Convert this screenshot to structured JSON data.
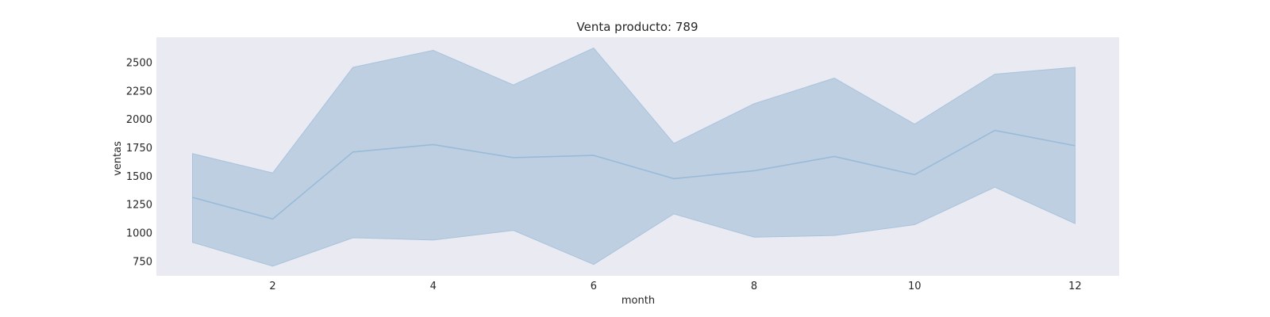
{
  "chart_data": {
    "type": "line",
    "title": "Venta producto: 789",
    "xlabel": "month",
    "ylabel": "ventas",
    "x": [
      1,
      2,
      3,
      4,
      5,
      6,
      7,
      8,
      9,
      10,
      11,
      12
    ],
    "series": [
      {
        "values": [
          1310,
          1120,
          1710,
          1775,
          1660,
          1680,
          1475,
          1545,
          1670,
          1510,
          1900,
          1765
        ],
        "band_lower": [
          915,
          705,
          955,
          935,
          1020,
          720,
          1165,
          960,
          975,
          1070,
          1400,
          1080
        ],
        "band_upper": [
          1695,
          1525,
          2455,
          2605,
          2300,
          2625,
          1785,
          2135,
          2360,
          1955,
          2395,
          2455
        ]
      }
    ],
    "xticks": [
      2,
      4,
      6,
      8,
      10,
      12
    ],
    "yticks": [
      750,
      1000,
      1250,
      1500,
      1750,
      2000,
      2250,
      2500
    ],
    "xlim": [
      0.55,
      12.55
    ],
    "ylim": [
      620,
      2720
    ],
    "grid": false,
    "colors": {
      "plot_background": "#eaeaf2",
      "line": "#99bbd8",
      "band_fill": "#a3bfd9",
      "band_edge": "#a9c3dc"
    }
  }
}
